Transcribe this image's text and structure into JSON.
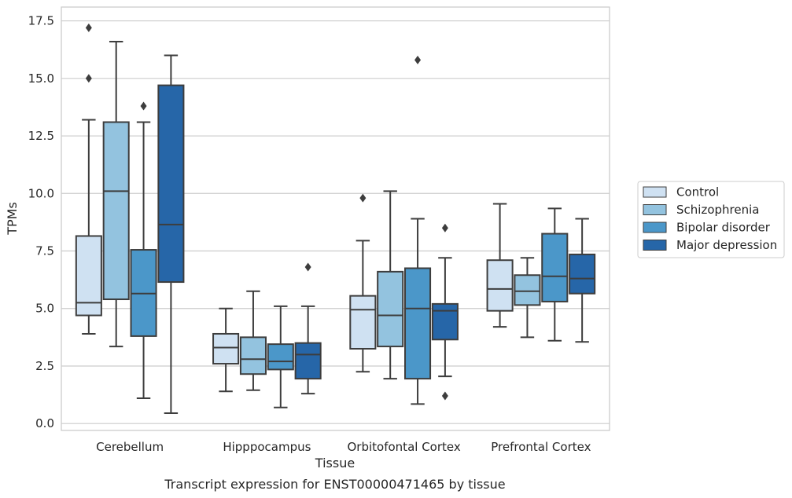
{
  "chart_data": {
    "type": "box",
    "xlabel": "Tissue",
    "ylabel": "TPMs",
    "caption": "Transcript expression for ENST00000471465 by tissue",
    "ylim": [
      -0.3,
      18.1
    ],
    "y_ticks": [
      "0.0",
      "2.5",
      "5.0",
      "7.5",
      "10.0",
      "12.5",
      "15.0",
      "17.5"
    ],
    "grid": "horizontal",
    "legend_position": "right",
    "categories": [
      "Cerebellum",
      "Hipppocampus",
      "Orbitofontal Cortex",
      "Prefrontal Cortex"
    ],
    "series": [
      {
        "name": "Control",
        "color": "#cfe1f2",
        "boxes": [
          {
            "whisker_low": 3.9,
            "q1": 4.7,
            "median": 5.25,
            "q3": 8.15,
            "whisker_high": 13.2,
            "outliers": [
              15.0,
              17.2
            ]
          },
          {
            "whisker_low": 1.4,
            "q1": 2.6,
            "median": 3.3,
            "q3": 3.9,
            "whisker_high": 5.0,
            "outliers": []
          },
          {
            "whisker_low": 2.25,
            "q1": 3.25,
            "median": 4.95,
            "q3": 5.55,
            "whisker_high": 7.95,
            "outliers": [
              9.8
            ]
          },
          {
            "whisker_low": 4.2,
            "q1": 4.9,
            "median": 5.85,
            "q3": 7.1,
            "whisker_high": 9.55,
            "outliers": []
          }
        ]
      },
      {
        "name": "Schizophrenia",
        "color": "#93c3df",
        "boxes": [
          {
            "whisker_low": 3.35,
            "q1": 5.4,
            "median": 10.1,
            "q3": 13.1,
            "whisker_high": 16.6,
            "outliers": []
          },
          {
            "whisker_low": 1.45,
            "q1": 2.15,
            "median": 2.8,
            "q3": 3.75,
            "whisker_high": 5.75,
            "outliers": []
          },
          {
            "whisker_low": 1.95,
            "q1": 3.35,
            "median": 4.7,
            "q3": 6.6,
            "whisker_high": 10.1,
            "outliers": []
          },
          {
            "whisker_low": 3.75,
            "q1": 5.15,
            "median": 5.75,
            "q3": 6.45,
            "whisker_high": 7.2,
            "outliers": []
          }
        ]
      },
      {
        "name": "Bipolar disorder",
        "color": "#4b97c9",
        "boxes": [
          {
            "whisker_low": 1.1,
            "q1": 3.8,
            "median": 5.65,
            "q3": 7.55,
            "whisker_high": 13.1,
            "outliers": [
              13.8
            ]
          },
          {
            "whisker_low": 0.7,
            "q1": 2.35,
            "median": 2.7,
            "q3": 3.45,
            "whisker_high": 5.1,
            "outliers": []
          },
          {
            "whisker_low": 0.85,
            "q1": 1.95,
            "median": 5.0,
            "q3": 6.75,
            "whisker_high": 8.9,
            "outliers": [
              15.8
            ]
          },
          {
            "whisker_low": 3.6,
            "q1": 5.3,
            "median": 6.4,
            "q3": 8.25,
            "whisker_high": 9.35,
            "outliers": []
          }
        ]
      },
      {
        "name": "Major depression",
        "color": "#2666a8",
        "boxes": [
          {
            "whisker_low": 0.45,
            "q1": 6.15,
            "median": 8.65,
            "q3": 14.7,
            "whisker_high": 16.0,
            "outliers": []
          },
          {
            "whisker_low": 1.3,
            "q1": 1.95,
            "median": 3.0,
            "q3": 3.5,
            "whisker_high": 5.1,
            "outliers": [
              6.8
            ]
          },
          {
            "whisker_low": 2.05,
            "q1": 3.65,
            "median": 4.9,
            "q3": 5.2,
            "whisker_high": 7.2,
            "outliers": [
              8.5,
              1.2
            ]
          },
          {
            "whisker_low": 3.55,
            "q1": 5.65,
            "median": 6.3,
            "q3": 7.35,
            "whisker_high": 8.9,
            "outliers": []
          }
        ]
      }
    ]
  }
}
